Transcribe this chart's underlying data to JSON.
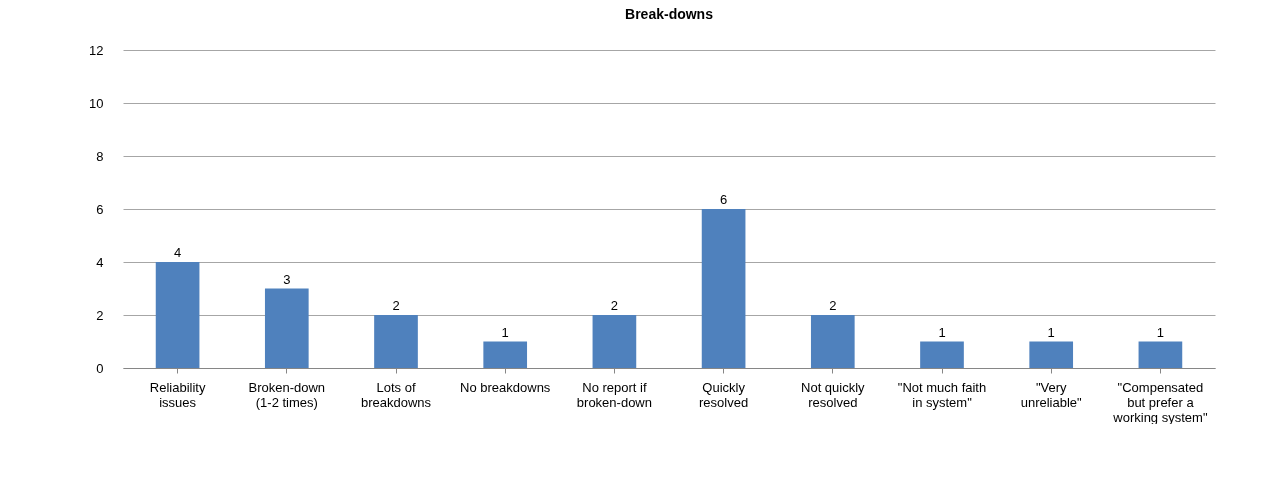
{
  "chart_data": {
    "type": "bar",
    "title": "Break-downs",
    "categories": [
      "Reliability issues",
      "Broken-down (1-2 times)",
      "Lots of breakdowns",
      "No breakdowns",
      "No report if broken-down",
      "Quickly resolved",
      "Not quickly resolved",
      "\"Not much faith in system\"",
      "\"Very unreliable\"",
      "\"Compensated but prefer a working system\""
    ],
    "values": [
      4,
      3,
      2,
      1,
      2,
      6,
      2,
      1,
      1,
      1
    ],
    "color": "#4f81bd",
    "ylim": [
      0,
      12
    ],
    "yticks": [
      0,
      2,
      4,
      6,
      8,
      10,
      12
    ],
    "grid": "y",
    "data_labels": true
  }
}
